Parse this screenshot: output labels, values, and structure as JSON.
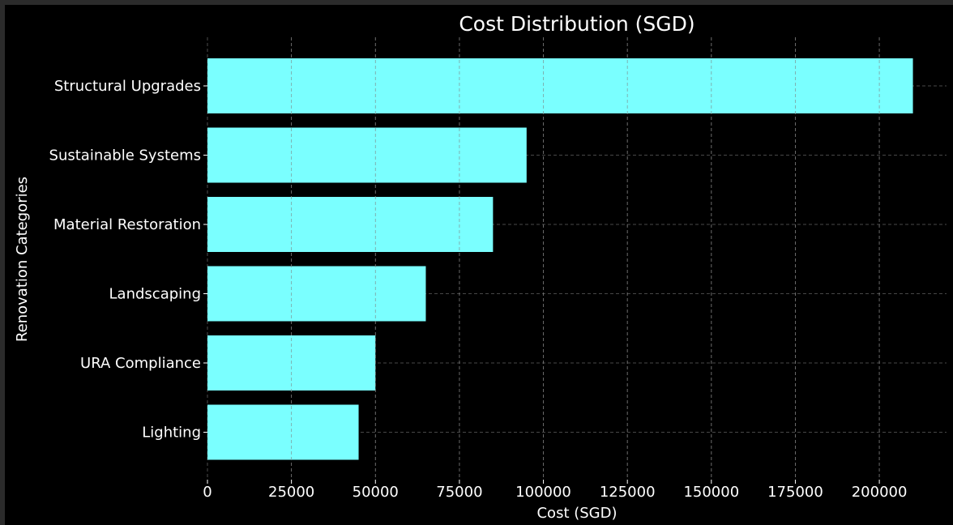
{
  "chart_data": {
    "type": "bar",
    "orientation": "horizontal",
    "title": "Cost Distribution (SGD)",
    "xlabel": "Cost (SGD)",
    "ylabel": "Renovation Categories",
    "categories": [
      "Structural Upgrades",
      "Sustainable Systems",
      "Material Restoration",
      "Landscaping",
      "URA Compliance",
      "Lighting"
    ],
    "values": [
      210000,
      95000,
      85000,
      65000,
      50000,
      45000
    ],
    "xlim": [
      0,
      220000
    ],
    "xticks": [
      0,
      25000,
      50000,
      75000,
      100000,
      125000,
      150000,
      175000,
      200000
    ],
    "grid": true,
    "colors": {
      "bar": "#7affff",
      "background": "#000000",
      "text": "#ffffff",
      "grid": "#7f7f7f"
    }
  }
}
